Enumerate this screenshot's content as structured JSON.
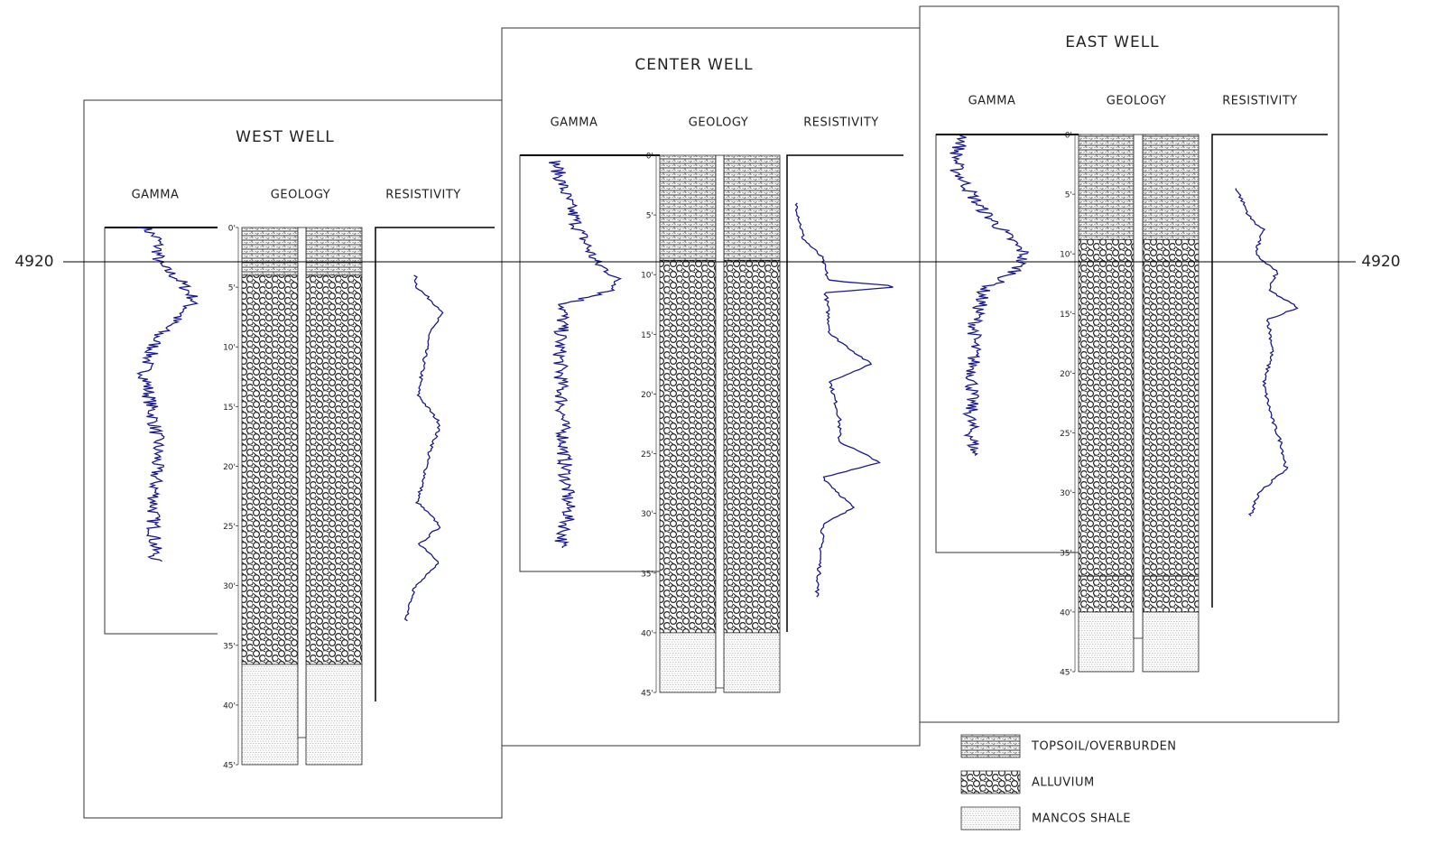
{
  "datum_label_left": "4920",
  "datum_label_right": "4920",
  "wells": [
    {
      "title": "WEST WELL",
      "headers": [
        "GAMMA",
        "GEOLOGY",
        "RESISTIVITY"
      ],
      "depth_labels": [
        "0'",
        "5'",
        "10'",
        "15'",
        "20'",
        "25'",
        "30'",
        "35'",
        "40'",
        "45'"
      ]
    },
    {
      "title": "CENTER WELL",
      "headers": [
        "GAMMA",
        "GEOLOGY",
        "RESISTIVITY"
      ],
      "depth_labels": [
        "0'",
        "5'",
        "10'",
        "15'",
        "20'",
        "25'",
        "30'",
        "35'",
        "40'",
        "45'"
      ]
    },
    {
      "title": "EAST WELL",
      "headers": [
        "GAMMA",
        "GEOLOGY",
        "RESISTIVITY"
      ],
      "depth_labels": [
        "0'",
        "5'",
        "10'",
        "15'",
        "20'",
        "25'",
        "30'",
        "35'",
        "40'",
        "45'"
      ]
    }
  ],
  "legend": [
    "TOPSOIL/OVERBURDEN",
    "ALLUVIUM",
    "MANCOS SHALE"
  ]
}
